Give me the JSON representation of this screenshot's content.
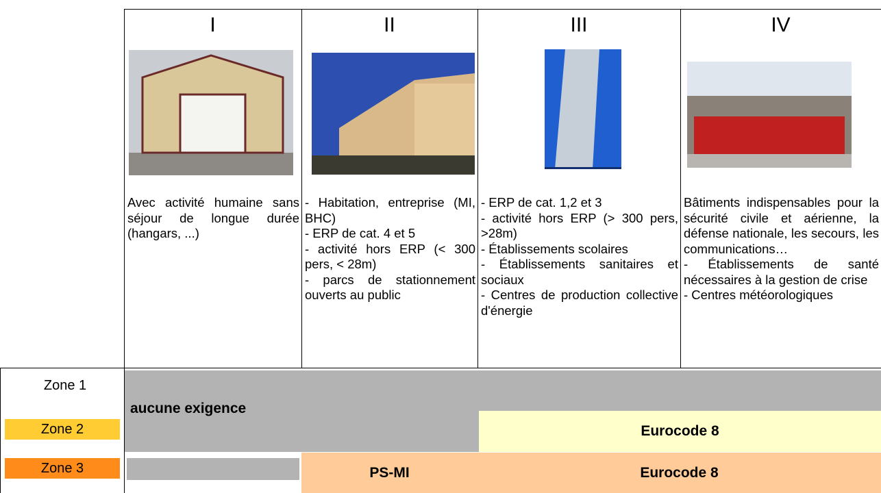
{
  "columns": [
    {
      "label": "I",
      "items": [
        "Avec activité humaine sans séjour de longue durée (hangars, ...)"
      ]
    },
    {
      "label": "II",
      "items": [
        "- Habitation, entreprise (MI, BHC)",
        "- ERP  de cat. 4 et 5",
        "- activité hors ERP   (< 300 pers, < 28m)",
        "- parcs de stationnement ouverts au public"
      ]
    },
    {
      "label": "III",
      "items": [
        "- ERP de cat. 1,2 et 3",
        "- activité hors ERP (> 300 pers, >28m)",
        "- Établissements scolaires",
        "- Établissements sanitaires et sociaux",
        "- Centres de production collective d'énergie"
      ]
    },
    {
      "label": "IV",
      "items": [
        "Bâtiments indispensables pour la sécurité civile et aérienne, la défense nationale, les secours, les communications…",
        "- Établissements de santé nécessaires à la gestion de crise",
        "- Centres météorologiques"
      ]
    }
  ],
  "zones": [
    "Zone 1",
    "Zone 2",
    "Zone 3"
  ],
  "requirements": {
    "none": "aucune exigence",
    "zone2_eurocode": "Eurocode 8",
    "zone3_psmi": "PS-MI",
    "zone3_eurocode": "Eurocode 8"
  }
}
